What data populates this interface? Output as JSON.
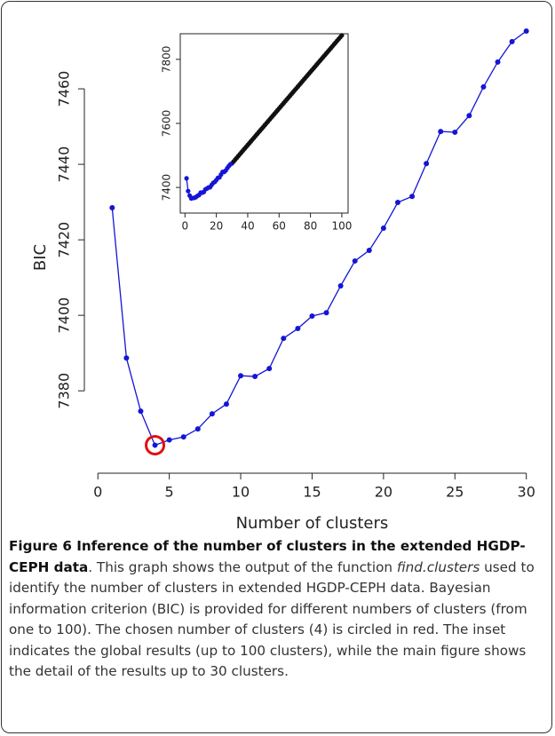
{
  "chart_data": [
    {
      "type": "line",
      "xlabel": "Number of clusters",
      "ylabel": "BIC",
      "x": [
        1,
        2,
        3,
        4,
        5,
        6,
        7,
        8,
        9,
        10,
        11,
        12,
        13,
        14,
        15,
        16,
        17,
        18,
        19,
        20,
        21,
        22,
        23,
        24,
        25,
        26,
        27,
        28,
        29,
        30
      ],
      "series": [
        {
          "color": "#1515d6",
          "values": [
            7428.5,
            7388.7,
            7374.6,
            7365.6,
            7367.0,
            7367.8,
            7369.9,
            7373.9,
            7376.5,
            7384.0,
            7383.8,
            7385.9,
            7393.9,
            7396.5,
            7399.8,
            7400.7,
            7407.8,
            7414.4,
            7417.2,
            7423.1,
            7429.9,
            7431.5,
            7440.2,
            7448.7,
            7448.5,
            7452.9,
            7460.5,
            7467.1,
            7472.5,
            7475.3
          ]
        }
      ],
      "xlim": [
        -0.2,
        31.2
      ],
      "ylim": [
        7361,
        7480
      ],
      "xticks": [
        0,
        5,
        10,
        15,
        20,
        25,
        30
      ],
      "yticks": [
        7380,
        7400,
        7420,
        7440,
        7460
      ],
      "circled_x": 4,
      "circle_color": "#e01010"
    },
    {
      "type": "line",
      "series": [
        {
          "color": "#1515d6",
          "x": [
            1,
            2,
            3,
            4,
            5,
            6,
            7,
            8,
            9,
            10,
            11,
            12,
            13,
            14,
            15,
            16,
            17,
            18,
            19,
            20,
            21,
            22,
            23,
            24,
            25,
            26,
            27,
            28,
            29,
            30
          ],
          "values": [
            7428.5,
            7388.7,
            7374.6,
            7365.6,
            7367.0,
            7367.8,
            7369.9,
            7373.9,
            7376.5,
            7384.0,
            7383.8,
            7385.9,
            7393.9,
            7396.5,
            7399.8,
            7400.7,
            7407.8,
            7414.4,
            7417.2,
            7423.1,
            7429.9,
            7431.5,
            7440.2,
            7448.7,
            7448.5,
            7452.9,
            7460.5,
            7467.1,
            7472.5,
            7475.3
          ]
        },
        {
          "color": "#111111",
          "x": [
            31,
            32,
            33,
            34,
            35,
            36,
            37,
            38,
            39,
            40,
            41,
            42,
            43,
            44,
            45,
            46,
            47,
            48,
            49,
            50,
            51,
            52,
            53,
            54,
            55,
            56,
            57,
            58,
            59,
            60,
            61,
            62,
            63,
            64,
            65,
            66,
            67,
            68,
            69,
            70,
            71,
            72,
            73,
            74,
            75,
            76,
            77,
            78,
            79,
            80,
            81,
            82,
            83,
            84,
            85,
            86,
            87,
            88,
            89,
            90,
            91,
            92,
            93,
            94,
            95,
            96,
            97,
            98,
            99,
            100
          ],
          "values": [
            7481.0,
            7486.7,
            7492.4,
            7498.1,
            7503.9,
            7509.6,
            7515.3,
            7521.0,
            7526.7,
            7532.4,
            7538.1,
            7543.8,
            7549.5,
            7555.2,
            7561.0,
            7566.7,
            7572.4,
            7578.1,
            7583.8,
            7589.5,
            7595.2,
            7600.9,
            7606.6,
            7612.3,
            7618.1,
            7623.8,
            7629.5,
            7635.2,
            7640.9,
            7646.6,
            7652.3,
            7658.0,
            7663.7,
            7669.4,
            7675.2,
            7680.9,
            7686.6,
            7692.3,
            7698.0,
            7703.7,
            7709.4,
            7715.1,
            7720.8,
            7726.5,
            7732.3,
            7738.0,
            7743.7,
            7749.4,
            7755.1,
            7760.8,
            7766.5,
            7772.2,
            7777.9,
            7783.6,
            7789.4,
            7795.1,
            7800.8,
            7806.5,
            7812.2,
            7817.9,
            7823.6,
            7829.3,
            7835.0,
            7840.7,
            7846.5,
            7852.2,
            7857.9,
            7863.6,
            7869.3,
            7875.0
          ]
        }
      ],
      "xlim": [
        -3,
        104
      ],
      "ylim": [
        7320,
        7880
      ],
      "xticks": [
        0,
        20,
        40,
        60,
        80,
        100
      ],
      "yticks": [
        7400,
        7600,
        7800
      ]
    }
  ],
  "caption": {
    "title": "Figure 6 Inference of the number of clusters in the extended HGDP-CEPH data",
    "text_before": ". This graph shows the output of the function ",
    "italic": "find.clusters",
    "text_after": " used to identify the number of clusters in extended HGDP-CEPH data. Bayesian information criterion (BIC) is provided for different numbers of clusters (from one to 100). The chosen number of clusters (4) is circled in red. The inset indicates the global results (up to 100 clusters), while the main figure shows the detail of the results up to 30 clusters."
  }
}
